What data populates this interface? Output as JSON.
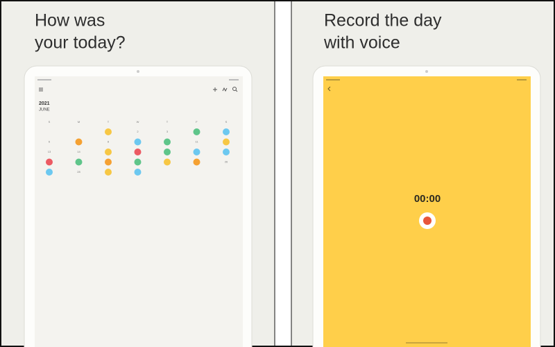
{
  "panels": [
    {
      "title_lines": [
        "How was",
        "your today?"
      ],
      "calendar": {
        "year": "2021",
        "month": "JUNE",
        "weekdays": [
          "S",
          "M",
          "T",
          "W",
          "T",
          "F",
          "S"
        ],
        "cells": [
          {
            "color": "#f7c744"
          },
          {
            "label": "2"
          },
          {
            "label": "3"
          },
          {
            "color": "#5fc58a"
          },
          {
            "color": "#6cc8f0"
          },
          {
            "label": "6"
          },
          {
            "color": "#f5a132"
          },
          {
            "label": "8"
          },
          {
            "color": "#6cc8f0"
          },
          {
            "color": "#5fc58a"
          },
          {
            "label": "11"
          },
          {
            "color": "#f7c744"
          },
          {
            "label": "13"
          },
          {
            "label": "14"
          },
          {
            "color": "#f7c744"
          },
          {
            "color": "#ec5a63"
          },
          {
            "color": "#5fc58a"
          },
          {
            "color": "#6cc8f0"
          },
          {
            "color": "#6cc8f0"
          },
          {
            "color": "#ec5a63"
          },
          {
            "color": "#5fc58a"
          },
          {
            "color": "#f5a132"
          },
          {
            "color": "#5fc58a"
          },
          {
            "color": "#f7c744"
          },
          {
            "color": "#f5a132"
          },
          {
            "label": "26"
          },
          {
            "color": "#6cc8f0"
          },
          {
            "label": "28"
          },
          {
            "color": "#f7c744"
          },
          {
            "color": "#6cc8f0"
          }
        ]
      }
    },
    {
      "title_lines": [
        "Record the day",
        "with voice"
      ],
      "timer": "00:00"
    }
  ]
}
